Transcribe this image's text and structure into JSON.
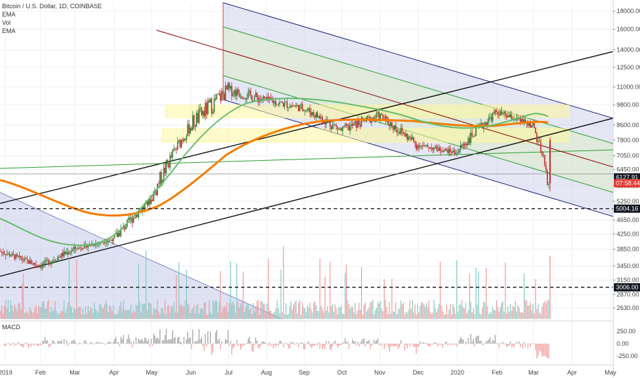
{
  "legend": {
    "title": "Bitcoin / U.S. Dollar, 1D, COINBASE",
    "indicators": [
      "EMA",
      "Vol",
      "EMA"
    ]
  },
  "macd_label": "MACD",
  "colors": {
    "up": "#26a69a",
    "down": "#ef5350",
    "candle_up": "#2e7d32",
    "candle_down": "#c62828",
    "ema_fast": "#66bb6a",
    "ema_slow": "#f57c00",
    "channel_fill": "#c5cae9",
    "channel_edge": "#1a237e",
    "channel_mid": "#2e9e2e",
    "zone": "#fff59d",
    "tag_bg": "#131722",
    "price_tag": "#e53935"
  },
  "chart_data": {
    "type": "candlestick",
    "symbol": "Bitcoin / U.S. Dollar",
    "interval": "1D",
    "exchange": "COINBASE",
    "x_tick_labels": [
      "2019",
      "Feb",
      "Mar",
      "Apr",
      "May",
      "Jun",
      "Jul",
      "Aug",
      "Sep",
      "Oct",
      "Nov",
      "Dec",
      "2020",
      "Feb",
      "Mar",
      "Apr",
      "May"
    ],
    "y_tick_labels": [
      "18000.00",
      "16000.00",
      "14000.00",
      "12500.00",
      "11000.00",
      "9800.00",
      "8600.00",
      "7800.00",
      "7050.00",
      "6450.00",
      "5800.00",
      "5250.00",
      "4650.00",
      "4250.00",
      "3850.00",
      "3450.00",
      "3150.00",
      "2870.00",
      "2630.00"
    ],
    "y_tick_values": [
      18000,
      16000,
      14000,
      12500,
      11000,
      9800,
      8600,
      7800,
      7050,
      6450,
      5800,
      5250,
      4650,
      4250,
      3850,
      3450,
      3150,
      2870,
      2630
    ],
    "ylim": [
      2450,
      19000
    ],
    "y_scale": "log",
    "price_tags": [
      {
        "label": "6127.91",
        "value": 6127.91,
        "style": "dark"
      },
      {
        "label": "07:58:44",
        "value": 5900,
        "style": "red"
      },
      {
        "label": "5004.16",
        "value": 5004.16,
        "style": "dark"
      },
      {
        "label": "3006.00",
        "value": 3006,
        "style": "dark"
      }
    ],
    "horizontal_levels": [
      5004.16,
      3006
    ],
    "monthly_ohlc": [
      {
        "month": "2019-01",
        "open": 3800,
        "high": 4100,
        "low": 3400,
        "close": 3450
      },
      {
        "month": "2019-02",
        "open": 3450,
        "high": 4200,
        "low": 3350,
        "close": 3850
      },
      {
        "month": "2019-03",
        "open": 3850,
        "high": 4150,
        "low": 3700,
        "close": 4100
      },
      {
        "month": "2019-04",
        "open": 4100,
        "high": 5600,
        "low": 4050,
        "close": 5300
      },
      {
        "month": "2019-05",
        "open": 5300,
        "high": 9000,
        "low": 5250,
        "close": 8550
      },
      {
        "month": "2019-06",
        "open": 8550,
        "high": 13800,
        "low": 7500,
        "close": 10800
      },
      {
        "month": "2019-07",
        "open": 10800,
        "high": 13000,
        "low": 9100,
        "close": 10100
      },
      {
        "month": "2019-08",
        "open": 10100,
        "high": 12300,
        "low": 9400,
        "close": 9600
      },
      {
        "month": "2019-09",
        "open": 9600,
        "high": 10900,
        "low": 7800,
        "close": 8300
      },
      {
        "month": "2019-10",
        "open": 8300,
        "high": 10500,
        "low": 7400,
        "close": 9150
      },
      {
        "month": "2019-11",
        "open": 9150,
        "high": 9500,
        "low": 6550,
        "close": 7550
      },
      {
        "month": "2019-12",
        "open": 7550,
        "high": 7750,
        "low": 6450,
        "close": 7200
      },
      {
        "month": "2020-01",
        "open": 7200,
        "high": 9600,
        "low": 6900,
        "close": 9350
      },
      {
        "month": "2020-02",
        "open": 9350,
        "high": 10500,
        "low": 8450,
        "close": 8550
      },
      {
        "month": "2020-03",
        "open": 8550,
        "high": 9200,
        "low": 5700,
        "close": 5900
      }
    ],
    "macd_tick_labels": [
      "250.00",
      "0.00",
      "-250.00"
    ],
    "macd_tick_values": [
      250,
      0,
      -250
    ],
    "macd_ylim": [
      -420,
      420
    ]
  }
}
